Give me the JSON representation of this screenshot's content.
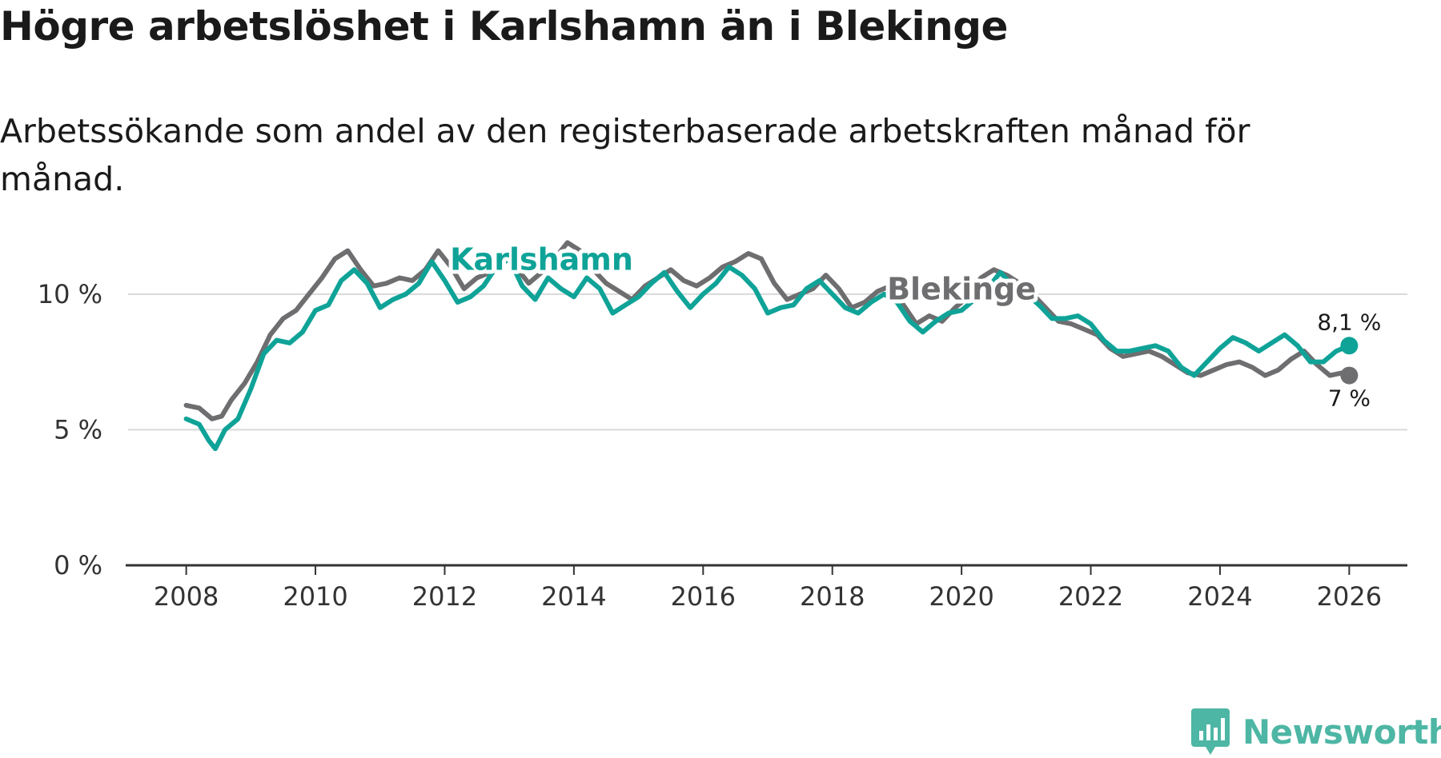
{
  "header": {
    "title": "Högre arbetslöshet i Karlshamn än i Blekinge",
    "subtitle": "Arbetssökande som andel av den registerbaserade arbetskraften månad för månad."
  },
  "colors": {
    "karlshamn": "#0fa398",
    "blekinge": "#6e6e70",
    "grid": "#d9d9d9",
    "axis": "#333333"
  },
  "branding": {
    "logo_text": "Newsworthy",
    "logo_icon": "newsworthy-bar-chart-icon"
  },
  "chart_data": {
    "type": "line",
    "title": "Högre arbetslöshet i Karlshamn än i Blekinge",
    "xlabel": "",
    "ylabel": "",
    "xlim": [
      2007.1,
      2026.9
    ],
    "ylim": [
      0,
      12
    ],
    "grid": true,
    "x_ticks": [
      2008,
      2010,
      2012,
      2014,
      2016,
      2018,
      2020,
      2022,
      2024,
      2026
    ],
    "x_tick_labels": [
      "2008",
      "2010",
      "2012",
      "2014",
      "2016",
      "2018",
      "2020",
      "2022",
      "2024",
      "2026"
    ],
    "y_ticks": [
      0,
      5,
      10
    ],
    "y_tick_labels": [
      "0 %",
      "5 %",
      "10 %"
    ],
    "series": [
      {
        "name": "Blekinge",
        "label": "Blekinge",
        "end_label": "7 %",
        "points": [
          [
            2008.0,
            5.9
          ],
          [
            2008.2,
            5.8
          ],
          [
            2008.4,
            5.4
          ],
          [
            2008.55,
            5.5
          ],
          [
            2008.7,
            6.1
          ],
          [
            2008.9,
            6.7
          ],
          [
            2009.1,
            7.5
          ],
          [
            2009.3,
            8.5
          ],
          [
            2009.5,
            9.1
          ],
          [
            2009.7,
            9.4
          ],
          [
            2009.9,
            10.0
          ],
          [
            2010.1,
            10.6
          ],
          [
            2010.3,
            11.3
          ],
          [
            2010.5,
            11.6
          ],
          [
            2010.7,
            10.9
          ],
          [
            2010.9,
            10.3
          ],
          [
            2011.1,
            10.4
          ],
          [
            2011.3,
            10.6
          ],
          [
            2011.5,
            10.5
          ],
          [
            2011.7,
            10.9
          ],
          [
            2011.9,
            11.6
          ],
          [
            2012.1,
            11.0
          ],
          [
            2012.3,
            10.2
          ],
          [
            2012.5,
            10.6
          ],
          [
            2012.7,
            10.8
          ],
          [
            2012.9,
            11.4
          ],
          [
            2013.1,
            11.0
          ],
          [
            2013.3,
            10.4
          ],
          [
            2013.5,
            10.8
          ],
          [
            2013.7,
            11.3
          ],
          [
            2013.9,
            11.9
          ],
          [
            2014.1,
            11.6
          ],
          [
            2014.3,
            10.9
          ],
          [
            2014.5,
            10.4
          ],
          [
            2014.7,
            10.1
          ],
          [
            2014.9,
            9.8
          ],
          [
            2015.1,
            10.3
          ],
          [
            2015.3,
            10.6
          ],
          [
            2015.5,
            10.9
          ],
          [
            2015.7,
            10.5
          ],
          [
            2015.9,
            10.3
          ],
          [
            2016.1,
            10.6
          ],
          [
            2016.3,
            11.0
          ],
          [
            2016.5,
            11.2
          ],
          [
            2016.7,
            11.5
          ],
          [
            2016.9,
            11.3
          ],
          [
            2017.1,
            10.4
          ],
          [
            2017.3,
            9.8
          ],
          [
            2017.5,
            10.0
          ],
          [
            2017.7,
            10.2
          ],
          [
            2017.9,
            10.7
          ],
          [
            2018.1,
            10.2
          ],
          [
            2018.3,
            9.5
          ],
          [
            2018.5,
            9.7
          ],
          [
            2018.7,
            10.1
          ],
          [
            2018.9,
            10.3
          ],
          [
            2019.1,
            9.6
          ],
          [
            2019.3,
            8.9
          ],
          [
            2019.5,
            9.2
          ],
          [
            2019.7,
            9.0
          ],
          [
            2019.9,
            9.5
          ],
          [
            2020.1,
            9.9
          ],
          [
            2020.3,
            10.6
          ],
          [
            2020.5,
            10.9
          ],
          [
            2020.7,
            10.7
          ],
          [
            2020.9,
            10.4
          ],
          [
            2021.1,
            10.0
          ],
          [
            2021.3,
            9.5
          ],
          [
            2021.5,
            9.0
          ],
          [
            2021.7,
            8.9
          ],
          [
            2021.9,
            8.7
          ],
          [
            2022.1,
            8.5
          ],
          [
            2022.3,
            8.0
          ],
          [
            2022.5,
            7.7
          ],
          [
            2022.7,
            7.8
          ],
          [
            2022.9,
            7.9
          ],
          [
            2023.1,
            7.7
          ],
          [
            2023.3,
            7.4
          ],
          [
            2023.5,
            7.1
          ],
          [
            2023.7,
            7.0
          ],
          [
            2023.9,
            7.2
          ],
          [
            2024.1,
            7.4
          ],
          [
            2024.3,
            7.5
          ],
          [
            2024.5,
            7.3
          ],
          [
            2024.7,
            7.0
          ],
          [
            2024.9,
            7.2
          ],
          [
            2025.1,
            7.6
          ],
          [
            2025.3,
            7.9
          ],
          [
            2025.5,
            7.4
          ],
          [
            2025.7,
            7.0
          ],
          [
            2025.9,
            7.1
          ],
          [
            2026.0,
            7.0
          ]
        ]
      },
      {
        "name": "Karlshamn",
        "label": "Karlshamn",
        "end_label": "8,1 %",
        "points": [
          [
            2008.0,
            5.4
          ],
          [
            2008.2,
            5.2
          ],
          [
            2008.35,
            4.6
          ],
          [
            2008.45,
            4.3
          ],
          [
            2008.6,
            5.0
          ],
          [
            2008.8,
            5.4
          ],
          [
            2009.0,
            6.5
          ],
          [
            2009.2,
            7.8
          ],
          [
            2009.4,
            8.3
          ],
          [
            2009.6,
            8.2
          ],
          [
            2009.8,
            8.6
          ],
          [
            2010.0,
            9.4
          ],
          [
            2010.2,
            9.6
          ],
          [
            2010.4,
            10.5
          ],
          [
            2010.6,
            10.9
          ],
          [
            2010.8,
            10.4
          ],
          [
            2011.0,
            9.5
          ],
          [
            2011.2,
            9.8
          ],
          [
            2011.4,
            10.0
          ],
          [
            2011.6,
            10.4
          ],
          [
            2011.8,
            11.2
          ],
          [
            2012.0,
            10.5
          ],
          [
            2012.2,
            9.7
          ],
          [
            2012.4,
            9.9
          ],
          [
            2012.6,
            10.3
          ],
          [
            2012.8,
            11.0
          ],
          [
            2013.0,
            11.3
          ],
          [
            2013.2,
            10.3
          ],
          [
            2013.4,
            9.8
          ],
          [
            2013.6,
            10.6
          ],
          [
            2013.8,
            10.2
          ],
          [
            2014.0,
            9.9
          ],
          [
            2014.2,
            10.6
          ],
          [
            2014.4,
            10.2
          ],
          [
            2014.6,
            9.3
          ],
          [
            2014.8,
            9.6
          ],
          [
            2015.0,
            9.9
          ],
          [
            2015.2,
            10.4
          ],
          [
            2015.4,
            10.8
          ],
          [
            2015.6,
            10.1
          ],
          [
            2015.8,
            9.5
          ],
          [
            2016.0,
            10.0
          ],
          [
            2016.2,
            10.4
          ],
          [
            2016.4,
            11.0
          ],
          [
            2016.6,
            10.7
          ],
          [
            2016.8,
            10.2
          ],
          [
            2017.0,
            9.3
          ],
          [
            2017.2,
            9.5
          ],
          [
            2017.4,
            9.6
          ],
          [
            2017.6,
            10.2
          ],
          [
            2017.8,
            10.5
          ],
          [
            2018.0,
            10.0
          ],
          [
            2018.2,
            9.5
          ],
          [
            2018.4,
            9.3
          ],
          [
            2018.6,
            9.7
          ],
          [
            2018.8,
            10.0
          ],
          [
            2019.0,
            9.7
          ],
          [
            2019.2,
            9.0
          ],
          [
            2019.4,
            8.6
          ],
          [
            2019.6,
            9.0
          ],
          [
            2019.8,
            9.3
          ],
          [
            2020.0,
            9.4
          ],
          [
            2020.2,
            9.8
          ],
          [
            2020.4,
            10.2
          ],
          [
            2020.6,
            10.8
          ],
          [
            2020.8,
            10.3
          ],
          [
            2021.0,
            10.0
          ],
          [
            2021.2,
            9.6
          ],
          [
            2021.4,
            9.1
          ],
          [
            2021.6,
            9.1
          ],
          [
            2021.8,
            9.2
          ],
          [
            2022.0,
            8.9
          ],
          [
            2022.2,
            8.3
          ],
          [
            2022.4,
            7.9
          ],
          [
            2022.6,
            7.9
          ],
          [
            2022.8,
            8.0
          ],
          [
            2023.0,
            8.1
          ],
          [
            2023.2,
            7.9
          ],
          [
            2023.4,
            7.3
          ],
          [
            2023.6,
            7.0
          ],
          [
            2023.8,
            7.5
          ],
          [
            2024.0,
            8.0
          ],
          [
            2024.2,
            8.4
          ],
          [
            2024.4,
            8.2
          ],
          [
            2024.6,
            7.9
          ],
          [
            2024.8,
            8.2
          ],
          [
            2025.0,
            8.5
          ],
          [
            2025.2,
            8.1
          ],
          [
            2025.4,
            7.5
          ],
          [
            2025.6,
            7.5
          ],
          [
            2025.8,
            7.9
          ],
          [
            2026.0,
            8.1
          ]
        ]
      }
    ]
  }
}
